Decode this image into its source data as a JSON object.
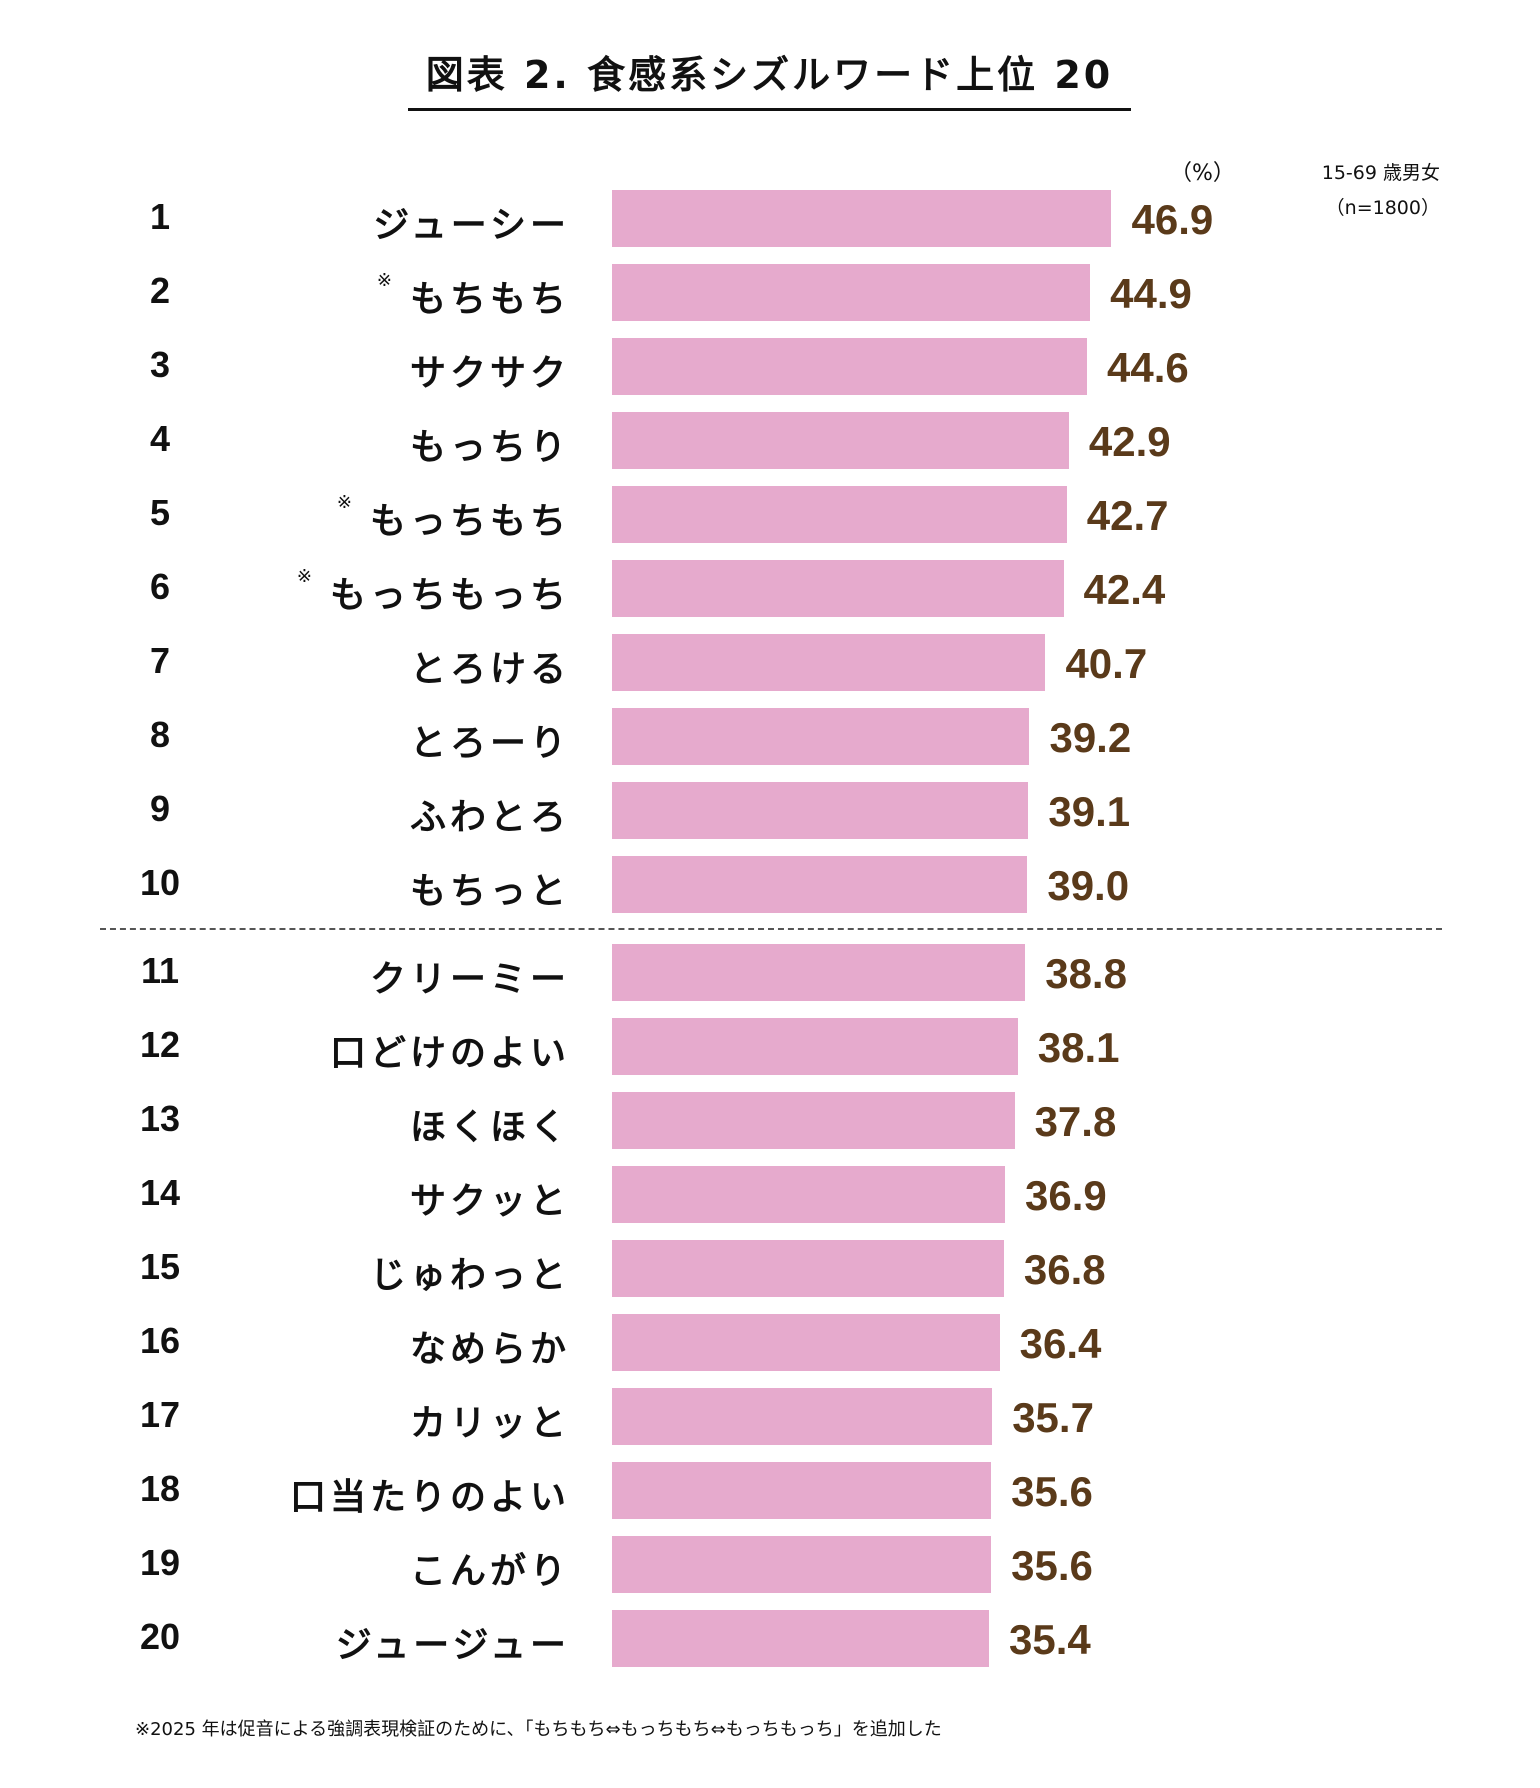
{
  "title": "図表 2. 食感系シズルワード上位 20",
  "unit_label": "（%）",
  "sample_line1": "15-69 歳男女",
  "sample_line2": "（n=1800）",
  "footnote": "※2025 年は促音による強調表現検証のために、「もちもち⇔もっちもち⇔もっちもっち」を追加した",
  "colors": {
    "bar": "#e6aacd",
    "value_text": "#5a3a1a"
  },
  "chart_data": {
    "type": "bar",
    "orientation": "horizontal",
    "title": "図表 2. 食感系シズルワード上位 20",
    "unit": "%",
    "xlim": [
      0,
      50
    ],
    "grid": false,
    "rows": [
      {
        "rank": "1",
        "label": "ジューシー",
        "mark": "",
        "value": 46.9
      },
      {
        "rank": "2",
        "label": "もちもち",
        "mark": "※",
        "value": 44.9
      },
      {
        "rank": "3",
        "label": "サクサク",
        "mark": "",
        "value": 44.6
      },
      {
        "rank": "4",
        "label": "もっちり",
        "mark": "",
        "value": 42.9
      },
      {
        "rank": "5",
        "label": "もっちもち",
        "mark": "※",
        "value": 42.7
      },
      {
        "rank": "6",
        "label": "もっちもっち",
        "mark": "※",
        "value": 42.4
      },
      {
        "rank": "7",
        "label": "とろける",
        "mark": "",
        "value": 40.7
      },
      {
        "rank": "8",
        "label": "とろーり",
        "mark": "",
        "value": 39.2
      },
      {
        "rank": "9",
        "label": "ふわとろ",
        "mark": "",
        "value": 39.1
      },
      {
        "rank": "10",
        "label": "もちっと",
        "mark": "",
        "value": 39.0
      },
      {
        "rank": "11",
        "label": "クリーミー",
        "mark": "",
        "value": 38.8
      },
      {
        "rank": "12",
        "label": "口どけのよい",
        "mark": "",
        "value": 38.1
      },
      {
        "rank": "13",
        "label": "ほくほく",
        "mark": "",
        "value": 37.8
      },
      {
        "rank": "14",
        "label": "サクッと",
        "mark": "",
        "value": 36.9
      },
      {
        "rank": "15",
        "label": "じゅわっと",
        "mark": "",
        "value": 36.8
      },
      {
        "rank": "16",
        "label": "なめらか",
        "mark": "",
        "value": 36.4
      },
      {
        "rank": "17",
        "label": "カリッと",
        "mark": "",
        "value": 35.7
      },
      {
        "rank": "18",
        "label": "口当たりのよい",
        "mark": "",
        "value": 35.6
      },
      {
        "rank": "19",
        "label": "こんがり",
        "mark": "",
        "value": 35.6
      },
      {
        "rank": "20",
        "label": "ジュージュー",
        "mark": "",
        "value": 35.4
      }
    ]
  }
}
